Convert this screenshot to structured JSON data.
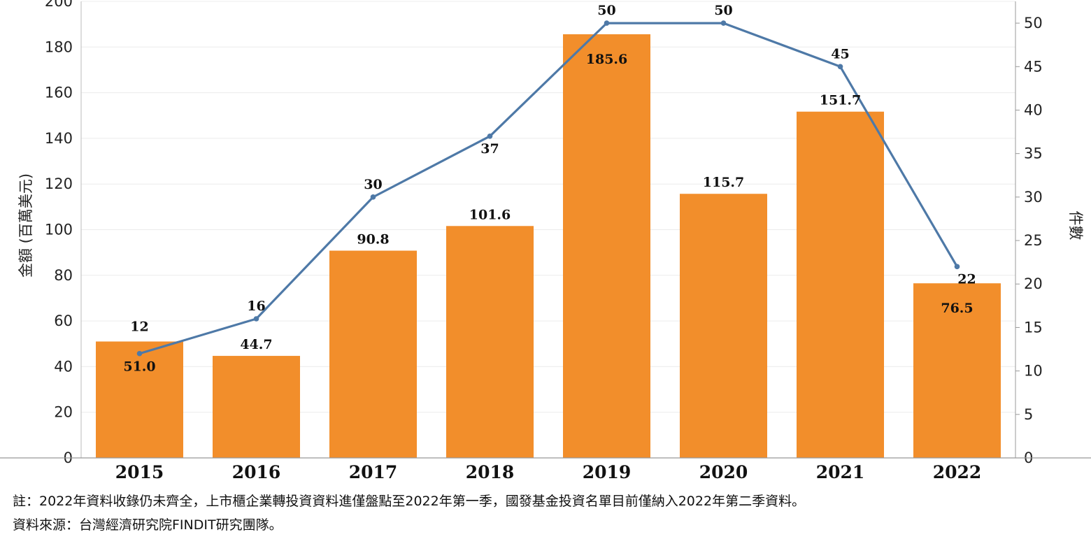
{
  "chart_data": {
    "type": "bar",
    "categories": [
      "2015",
      "2016",
      "2017",
      "2018",
      "2019",
      "2020",
      "2021",
      "2022"
    ],
    "series": [
      {
        "type": "bar",
        "axis": "left",
        "values": [
          51.0,
          44.7,
          90.8,
          101.6,
          185.6,
          115.7,
          151.7,
          76.5
        ],
        "labels": [
          "51.0",
          "44.7",
          "90.8",
          "101.6",
          "185.6",
          "115.7",
          "151.7",
          "76.5"
        ],
        "color": "#F28E2B"
      },
      {
        "type": "line",
        "axis": "right",
        "values": [
          12,
          16,
          30,
          37,
          50,
          50,
          45,
          22
        ],
        "labels": [
          "12",
          "16",
          "30",
          "37",
          "50",
          "50",
          "45",
          "22"
        ],
        "color": "#4E79A7"
      }
    ],
    "ylabel_left": "金額 (百萬美元)",
    "ylabel_right": "件數",
    "ylim_left": [
      0,
      200
    ],
    "ylim_right": [
      0,
      52.5
    ],
    "yticks_left": [
      "0",
      "20",
      "40",
      "60",
      "80",
      "100",
      "120",
      "140",
      "160",
      "180",
      "200"
    ],
    "yticks_right": [
      "0",
      "5",
      "10",
      "15",
      "20",
      "25",
      "30",
      "35",
      "40",
      "45",
      "50"
    ],
    "grid": true,
    "legend": "none"
  },
  "footnotes": {
    "note": "註：2022年資料收錄仍未齊全，上市櫃企業轉投資資料進僅盤點至2022年第一季，國發基金投資名單目前僅納入2022年第二季資料。",
    "source": "資料來源：台灣經濟研究院FINDIT研究團隊。"
  }
}
